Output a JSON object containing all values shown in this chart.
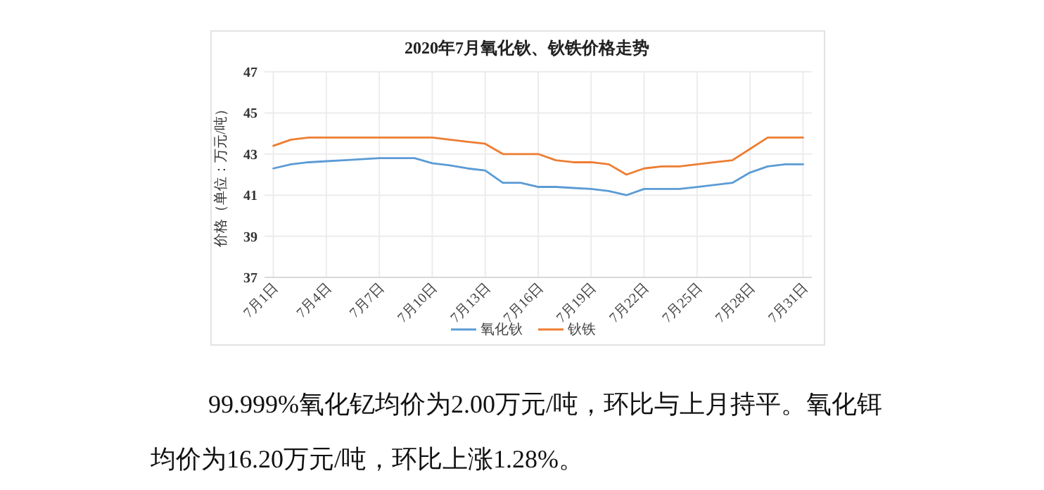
{
  "chart_data": {
    "type": "line",
    "title": "2020年7月氧化钬、钬铁价格走势",
    "ylabel": "价格（单位：万元/吨）",
    "categories": [
      "7月1日",
      null,
      null,
      "7月4日",
      null,
      null,
      "7月7日",
      null,
      null,
      "7月10日",
      null,
      null,
      "7月13日",
      null,
      null,
      "7月16日",
      null,
      null,
      "7月19日",
      null,
      null,
      "7月22日",
      null,
      null,
      "7月25日",
      null,
      null,
      "7月28日",
      null,
      null,
      "7月31日"
    ],
    "series": [
      {
        "name": "氧化钬",
        "color": "#5b9bd5",
        "values": [
          42.3,
          42.5,
          42.6,
          42.65,
          42.7,
          42.75,
          42.8,
          42.8,
          42.8,
          42.55,
          42.45,
          42.3,
          42.2,
          41.6,
          41.6,
          41.4,
          41.4,
          41.35,
          41.3,
          41.2,
          41.0,
          41.3,
          41.3,
          41.3,
          41.4,
          41.5,
          41.6,
          42.1,
          42.4,
          42.5,
          42.5
        ]
      },
      {
        "name": "钬铁",
        "color": "#ed7d31",
        "values": [
          43.4,
          43.7,
          43.8,
          43.8,
          43.8,
          43.8,
          43.8,
          43.8,
          43.8,
          43.8,
          43.7,
          43.6,
          43.5,
          43.0,
          43.0,
          43.0,
          42.7,
          42.6,
          42.6,
          42.5,
          42.0,
          42.3,
          42.4,
          42.4,
          42.5,
          42.6,
          42.7,
          43.25,
          43.8,
          43.8,
          43.8
        ]
      }
    ],
    "ylim": [
      37,
      47
    ],
    "yticks": [
      37,
      39,
      41,
      43,
      45,
      47
    ],
    "grid": true,
    "legend": "bottom",
    "annotations": [
      "99.999%氧化钇均价为2.00万元/吨，环比与上月持平。氧化铒均价为16.20万元/吨，环比上涨1.28%。"
    ]
  }
}
